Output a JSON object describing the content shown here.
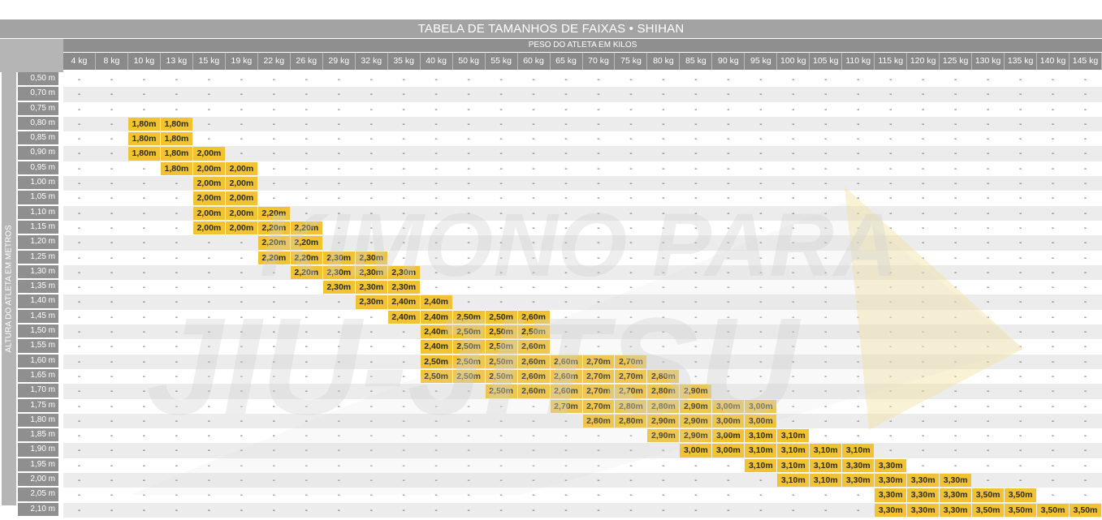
{
  "title": "TABELA DE TAMANHOS DE FAIXAS • SHIHAN",
  "weight_axis_label": "PESO DO ATLETA EM KILOS",
  "height_axis_label": "ALTURA DO ATLETA EM METROS",
  "empty_symbol": "-",
  "watermark_text": [
    "KIMONO PARA",
    "JIU-JITSU"
  ],
  "colors": {
    "highlight": "#f1c232",
    "header": "#a3a3a3"
  },
  "weights": [
    "4 kg",
    "8 kg",
    "10 kg",
    "13 kg",
    "15 kg",
    "19 kg",
    "22 kg",
    "26 kg",
    "29 kg",
    "32 kg",
    "35 kg",
    "40 kg",
    "50 kg",
    "55 kg",
    "60 kg",
    "65 kg",
    "70 kg",
    "75 kg",
    "80 kg",
    "85 kg",
    "90 kg",
    "95 kg",
    "100 kg",
    "105 kg",
    "110 kg",
    "115 kg",
    "120 kg",
    "125 kg",
    "130 kg",
    "135 kg",
    "140 kg",
    "145 kg"
  ],
  "rows": [
    {
      "height": "0,50 m",
      "cells": [
        "-",
        "-",
        "-",
        "-",
        "-",
        "-",
        "-",
        "-",
        "-",
        "-",
        "-",
        "-",
        "-",
        "-",
        "-",
        "-",
        "-",
        "-",
        "-",
        "-",
        "-",
        "-",
        "-",
        "-",
        "-",
        "-",
        "-",
        "-",
        "-",
        "-",
        "-",
        "-"
      ]
    },
    {
      "height": "0,70 m",
      "cells": [
        "-",
        "-",
        "-",
        "-",
        "-",
        "-",
        "-",
        "-",
        "-",
        "-",
        "-",
        "-",
        "-",
        "-",
        "-",
        "-",
        "-",
        "-",
        "-",
        "-",
        "-",
        "-",
        "-",
        "-",
        "-",
        "-",
        "-",
        "-",
        "-",
        "-",
        "-",
        "-"
      ]
    },
    {
      "height": "0,75 m",
      "cells": [
        "-",
        "-",
        "-",
        "-",
        "-",
        "-",
        "-",
        "-",
        "-",
        "-",
        "-",
        "-",
        "-",
        "-",
        "-",
        "-",
        "-",
        "-",
        "-",
        "-",
        "-",
        "-",
        "-",
        "-",
        "-",
        "-",
        "-",
        "-",
        "-",
        "-",
        "-",
        "-"
      ]
    },
    {
      "height": "0,80 m",
      "cells": [
        "-",
        "-",
        "1,80m",
        "1,80m",
        "-",
        "-",
        "-",
        "-",
        "-",
        "-",
        "-",
        "-",
        "-",
        "-",
        "-",
        "-",
        "-",
        "-",
        "-",
        "-",
        "-",
        "-",
        "-",
        "-",
        "-",
        "-",
        "-",
        "-",
        "-",
        "-",
        "-",
        "-"
      ]
    },
    {
      "height": "0,85 m",
      "cells": [
        "-",
        "-",
        "1,80m",
        "1,80m",
        "-",
        "-",
        "-",
        "-",
        "-",
        "-",
        "-",
        "-",
        "-",
        "-",
        "-",
        "-",
        "-",
        "-",
        "-",
        "-",
        "-",
        "-",
        "-",
        "-",
        "-",
        "-",
        "-",
        "-",
        "-",
        "-",
        "-",
        "-"
      ]
    },
    {
      "height": "0,90 m",
      "cells": [
        "-",
        "-",
        "1,80m",
        "1,80m",
        "2,00m",
        "-",
        "-",
        "-",
        "-",
        "-",
        "-",
        "-",
        "-",
        "-",
        "-",
        "-",
        "-",
        "-",
        "-",
        "-",
        "-",
        "-",
        "-",
        "-",
        "-",
        "-",
        "-",
        "-",
        "-",
        "-",
        "-",
        "-"
      ]
    },
    {
      "height": "0,95 m",
      "cells": [
        "-",
        "-",
        "-",
        "1,80m",
        "2,00m",
        "2,00m",
        "-",
        "-",
        "-",
        "-",
        "-",
        "-",
        "-",
        "-",
        "-",
        "-",
        "-",
        "-",
        "-",
        "-",
        "-",
        "-",
        "-",
        "-",
        "-",
        "-",
        "-",
        "-",
        "-",
        "-",
        "-",
        "-"
      ]
    },
    {
      "height": "1,00 m",
      "cells": [
        "-",
        "-",
        "-",
        "-",
        "2,00m",
        "2,00m",
        "-",
        "-",
        "-",
        "-",
        "-",
        "-",
        "-",
        "-",
        "-",
        "-",
        "-",
        "-",
        "-",
        "-",
        "-",
        "-",
        "-",
        "-",
        "-",
        "-",
        "-",
        "-",
        "-",
        "-",
        "-",
        "-"
      ]
    },
    {
      "height": "1,05 m",
      "cells": [
        "-",
        "-",
        "-",
        "-",
        "2,00m",
        "2,00m",
        "-",
        "-",
        "-",
        "-",
        "-",
        "-",
        "-",
        "-",
        "-",
        "-",
        "-",
        "-",
        "-",
        "-",
        "-",
        "-",
        "-",
        "-",
        "-",
        "-",
        "-",
        "-",
        "-",
        "-",
        "-",
        "-"
      ]
    },
    {
      "height": "1,10 m",
      "cells": [
        "-",
        "-",
        "-",
        "-",
        "2,00m",
        "2,00m",
        "2,20m",
        "-",
        "-",
        "-",
        "-",
        "-",
        "-",
        "-",
        "-",
        "-",
        "-",
        "-",
        "-",
        "-",
        "-",
        "-",
        "-",
        "-",
        "-",
        "-",
        "-",
        "-",
        "-",
        "-",
        "-",
        "-"
      ]
    },
    {
      "height": "1,15 m",
      "cells": [
        "-",
        "-",
        "-",
        "-",
        "2,00m",
        "2,00m",
        "2,20m",
        "2,20m",
        "-",
        "-",
        "-",
        "-",
        "-",
        "-",
        "-",
        "-",
        "-",
        "-",
        "-",
        "-",
        "-",
        "-",
        "-",
        "-",
        "-",
        "-",
        "-",
        "-",
        "-",
        "-",
        "-",
        "-"
      ]
    },
    {
      "height": "1,20 m",
      "cells": [
        "-",
        "-",
        "-",
        "-",
        "-",
        "-",
        "2,20m",
        "2,20m",
        "-",
        "-",
        "-",
        "-",
        "-",
        "-",
        "-",
        "-",
        "-",
        "-",
        "-",
        "-",
        "-",
        "-",
        "-",
        "-",
        "-",
        "-",
        "-",
        "-",
        "-",
        "-",
        "-",
        "-"
      ]
    },
    {
      "height": "1,25 m",
      "cells": [
        "-",
        "-",
        "-",
        "-",
        "-",
        "-",
        "2,20m",
        "2,20m",
        "2,30m",
        "2,30m",
        "-",
        "-",
        "-",
        "-",
        "-",
        "-",
        "-",
        "-",
        "-",
        "-",
        "-",
        "-",
        "-",
        "-",
        "-",
        "-",
        "-",
        "-",
        "-",
        "-",
        "-",
        "-"
      ]
    },
    {
      "height": "1,30 m",
      "cells": [
        "-",
        "-",
        "-",
        "-",
        "-",
        "-",
        "-",
        "2,20m",
        "2,30m",
        "2,30m",
        "2,30m",
        "-",
        "-",
        "-",
        "-",
        "-",
        "-",
        "-",
        "-",
        "-",
        "-",
        "-",
        "-",
        "-",
        "-",
        "-",
        "-",
        "-",
        "-",
        "-",
        "-",
        "-"
      ]
    },
    {
      "height": "1,35 m",
      "cells": [
        "-",
        "-",
        "-",
        "-",
        "-",
        "-",
        "-",
        "-",
        "2,30m",
        "2,30m",
        "2,30m",
        "-",
        "-",
        "-",
        "-",
        "-",
        "-",
        "-",
        "-",
        "-",
        "-",
        "-",
        "-",
        "-",
        "-",
        "-",
        "-",
        "-",
        "-",
        "-",
        "-",
        "-"
      ]
    },
    {
      "height": "1,40 m",
      "cells": [
        "-",
        "-",
        "-",
        "-",
        "-",
        "-",
        "-",
        "-",
        "-",
        "2,30m",
        "2,40m",
        "2,40m",
        "-",
        "-",
        "-",
        "-",
        "-",
        "-",
        "-",
        "-",
        "-",
        "-",
        "-",
        "-",
        "-",
        "-",
        "-",
        "-",
        "-",
        "-",
        "-",
        "-"
      ]
    },
    {
      "height": "1,45 m",
      "cells": [
        "-",
        "-",
        "-",
        "-",
        "-",
        "-",
        "-",
        "-",
        "-",
        "-",
        "2,40m",
        "2,40m",
        "2,50m",
        "2,50m",
        "2,60m",
        "-",
        "-",
        "-",
        "-",
        "-",
        "-",
        "-",
        "-",
        "-",
        "-",
        "-",
        "-",
        "-",
        "-",
        "-",
        "-",
        "-"
      ]
    },
    {
      "height": "1,50 m",
      "cells": [
        "-",
        "-",
        "-",
        "-",
        "-",
        "-",
        "-",
        "-",
        "-",
        "-",
        "-",
        "2,40m",
        "2,50m",
        "2,50m",
        "2,50m",
        "-",
        "-",
        "-",
        "-",
        "-",
        "-",
        "-",
        "-",
        "-",
        "-",
        "-",
        "-",
        "-",
        "-",
        "-",
        "-",
        "-"
      ]
    },
    {
      "height": "1,55 m",
      "cells": [
        "-",
        "-",
        "-",
        "-",
        "-",
        "-",
        "-",
        "-",
        "-",
        "-",
        "-",
        "2,40m",
        "2,50m",
        "2,50m",
        "2,60m",
        "-",
        "-",
        "-",
        "-",
        "-",
        "-",
        "-",
        "-",
        "-",
        "-",
        "-",
        "-",
        "-",
        "-",
        "-",
        "-",
        "-"
      ]
    },
    {
      "height": "1,60 m",
      "cells": [
        "-",
        "-",
        "-",
        "-",
        "-",
        "-",
        "-",
        "-",
        "-",
        "-",
        "-",
        "2,50m",
        "2,50m",
        "2,50m",
        "2,60m",
        "2,60m",
        "2,70m",
        "2,70m",
        "-",
        "-",
        "-",
        "-",
        "-",
        "-",
        "-",
        "-",
        "-",
        "-",
        "-",
        "-",
        "-",
        "-"
      ]
    },
    {
      "height": "1,65 m",
      "cells": [
        "-",
        "-",
        "-",
        "-",
        "-",
        "-",
        "-",
        "-",
        "-",
        "-",
        "-",
        "2,50m",
        "2,50m",
        "2,50m",
        "2,60m",
        "2,60m",
        "2,70m",
        "2,70m",
        "2,80m",
        "-",
        "-",
        "-",
        "-",
        "-",
        "-",
        "-",
        "-",
        "-",
        "-",
        "-",
        "-",
        "-"
      ]
    },
    {
      "height": "1,70 m",
      "cells": [
        "-",
        "-",
        "-",
        "-",
        "-",
        "-",
        "-",
        "-",
        "-",
        "-",
        "-",
        "-",
        "-",
        "2,50m",
        "2,60m",
        "2,60m",
        "2,70m",
        "2,70m",
        "2,80m",
        "2,90m",
        "-",
        "-",
        "-",
        "-",
        "-",
        "-",
        "-",
        "-",
        "-",
        "-",
        "-",
        "-"
      ]
    },
    {
      "height": "1,75 m",
      "cells": [
        "-",
        "-",
        "-",
        "-",
        "-",
        "-",
        "-",
        "-",
        "-",
        "-",
        "-",
        "-",
        "-",
        "-",
        "-",
        "2,70m",
        "2,70m",
        "2,80m",
        "2,80m",
        "2,90m",
        "3,00m",
        "3,00m",
        "-",
        "-",
        "-",
        "-",
        "-",
        "-",
        "-",
        "-",
        "-",
        "-"
      ]
    },
    {
      "height": "1,80 m",
      "cells": [
        "-",
        "-",
        "-",
        "-",
        "-",
        "-",
        "-",
        "-",
        "-",
        "-",
        "-",
        "-",
        "-",
        "-",
        "-",
        "-",
        "2,80m",
        "2,80m",
        "2,90m",
        "2,90m",
        "3,00m",
        "3,00m",
        "-",
        "-",
        "-",
        "-",
        "-",
        "-",
        "-",
        "-",
        "-",
        "-"
      ]
    },
    {
      "height": "1,85 m",
      "cells": [
        "-",
        "-",
        "-",
        "-",
        "-",
        "-",
        "-",
        "-",
        "-",
        "-",
        "-",
        "-",
        "-",
        "-",
        "-",
        "-",
        "-",
        "-",
        "2,90m",
        "2,90m",
        "3,00m",
        "3,10m",
        "3,10m",
        "-",
        "-",
        "-",
        "-",
        "-",
        "-",
        "-",
        "-",
        "-"
      ]
    },
    {
      "height": "1,90 m",
      "cells": [
        "-",
        "-",
        "-",
        "-",
        "-",
        "-",
        "-",
        "-",
        "-",
        "-",
        "-",
        "-",
        "-",
        "-",
        "-",
        "-",
        "-",
        "-",
        "-",
        "3,00m",
        "3,00m",
        "3,10m",
        "3,10m",
        "3,10m",
        "3,10m",
        "-",
        "-",
        "-",
        "-",
        "-",
        "-",
        "-"
      ]
    },
    {
      "height": "1,95 m",
      "cells": [
        "-",
        "-",
        "-",
        "-",
        "-",
        "-",
        "-",
        "-",
        "-",
        "-",
        "-",
        "-",
        "-",
        "-",
        "-",
        "-",
        "-",
        "-",
        "-",
        "-",
        "-",
        "3,10m",
        "3,10m",
        "3,10m",
        "3,30m",
        "3,30m",
        "-",
        "-",
        "-",
        "-",
        "-",
        "-"
      ]
    },
    {
      "height": "2,00 m",
      "cells": [
        "-",
        "-",
        "-",
        "-",
        "-",
        "-",
        "-",
        "-",
        "-",
        "-",
        "-",
        "-",
        "-",
        "-",
        "-",
        "-",
        "-",
        "-",
        "-",
        "-",
        "-",
        "-",
        "3,10m",
        "3,10m",
        "3,30m",
        "3,30m",
        "3,30m",
        "3,30m",
        "-",
        "-",
        "-",
        "-"
      ]
    },
    {
      "height": "2,05 m",
      "cells": [
        "-",
        "-",
        "-",
        "-",
        "-",
        "-",
        "-",
        "-",
        "-",
        "-",
        "-",
        "-",
        "-",
        "-",
        "-",
        "-",
        "-",
        "-",
        "-",
        "-",
        "-",
        "-",
        "-",
        "-",
        "-",
        "3,30m",
        "3,30m",
        "3,30m",
        "3,50m",
        "3,50m",
        "-",
        "-"
      ]
    },
    {
      "height": "2,10 m",
      "cells": [
        "-",
        "-",
        "-",
        "-",
        "-",
        "-",
        "-",
        "-",
        "-",
        "-",
        "-",
        "-",
        "-",
        "-",
        "-",
        "-",
        "-",
        "-",
        "-",
        "-",
        "-",
        "-",
        "-",
        "-",
        "-",
        "3,30m",
        "3,30m",
        "3,30m",
        "3,50m",
        "3,50m",
        "3,50m",
        "3,50m"
      ]
    }
  ]
}
